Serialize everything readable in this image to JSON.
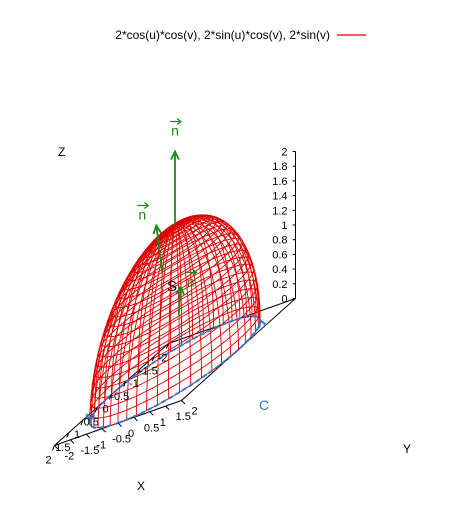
{
  "chart_data": {
    "type": "surface3d",
    "title": "",
    "legend": {
      "label": "2*cos(u)*cos(v), 2*sin(u)*cos(v), 2*sin(v)",
      "color": "#e00000",
      "placement": "top-right"
    },
    "surface": {
      "x": "2*cos(u)*cos(v)",
      "y": "2*sin(u)*cos(v)",
      "z": "2*sin(v)",
      "u_range": [
        0,
        6.2832
      ],
      "v_range": [
        0,
        1.5708
      ],
      "u_samples": 48,
      "v_samples": 24,
      "color": "#e00000"
    },
    "boundary_curve": {
      "label": "C",
      "z": 0,
      "radius": 2,
      "color": "#2b7bd6"
    },
    "surface_label": "S",
    "normal_vectors": [
      {
        "label": "n",
        "base": [
          0,
          0,
          2
        ],
        "dir": [
          0,
          0,
          1
        ]
      },
      {
        "label": "n",
        "base": [
          -0.9,
          -1.2,
          1.2
        ],
        "dir": [
          -0.45,
          -0.6,
          0.6
        ]
      },
      {
        "label": "n",
        "base": [
          1.15,
          1.15,
          1.0
        ],
        "dir": [
          0.58,
          0.58,
          0.5
        ]
      }
    ],
    "x_axis": {
      "label": "X",
      "range": [
        -2,
        2
      ],
      "ticks": [
        "-2",
        "-1.5",
        "-1",
        "-0.5",
        "0",
        "0.5",
        "1",
        "1.5",
        "2"
      ]
    },
    "y_axis": {
      "label": "Y",
      "range": [
        -2,
        2
      ],
      "ticks": [
        "-2",
        "-1.5",
        "-1",
        "-0.5",
        "0",
        "0.5",
        "1",
        "1.5",
        "2"
      ]
    },
    "z_axis": {
      "label": "Z",
      "range": [
        0,
        2
      ],
      "ticks": [
        "0",
        "0.2",
        "0.4",
        "0.6",
        "0.8",
        "1",
        "1.2",
        "1.4",
        "1.6",
        "1.8",
        "2"
      ]
    },
    "colors": {
      "normal": "#1a8a1a",
      "curve": "#2b7bd6",
      "surface": "#e00000"
    },
    "grid": false
  }
}
